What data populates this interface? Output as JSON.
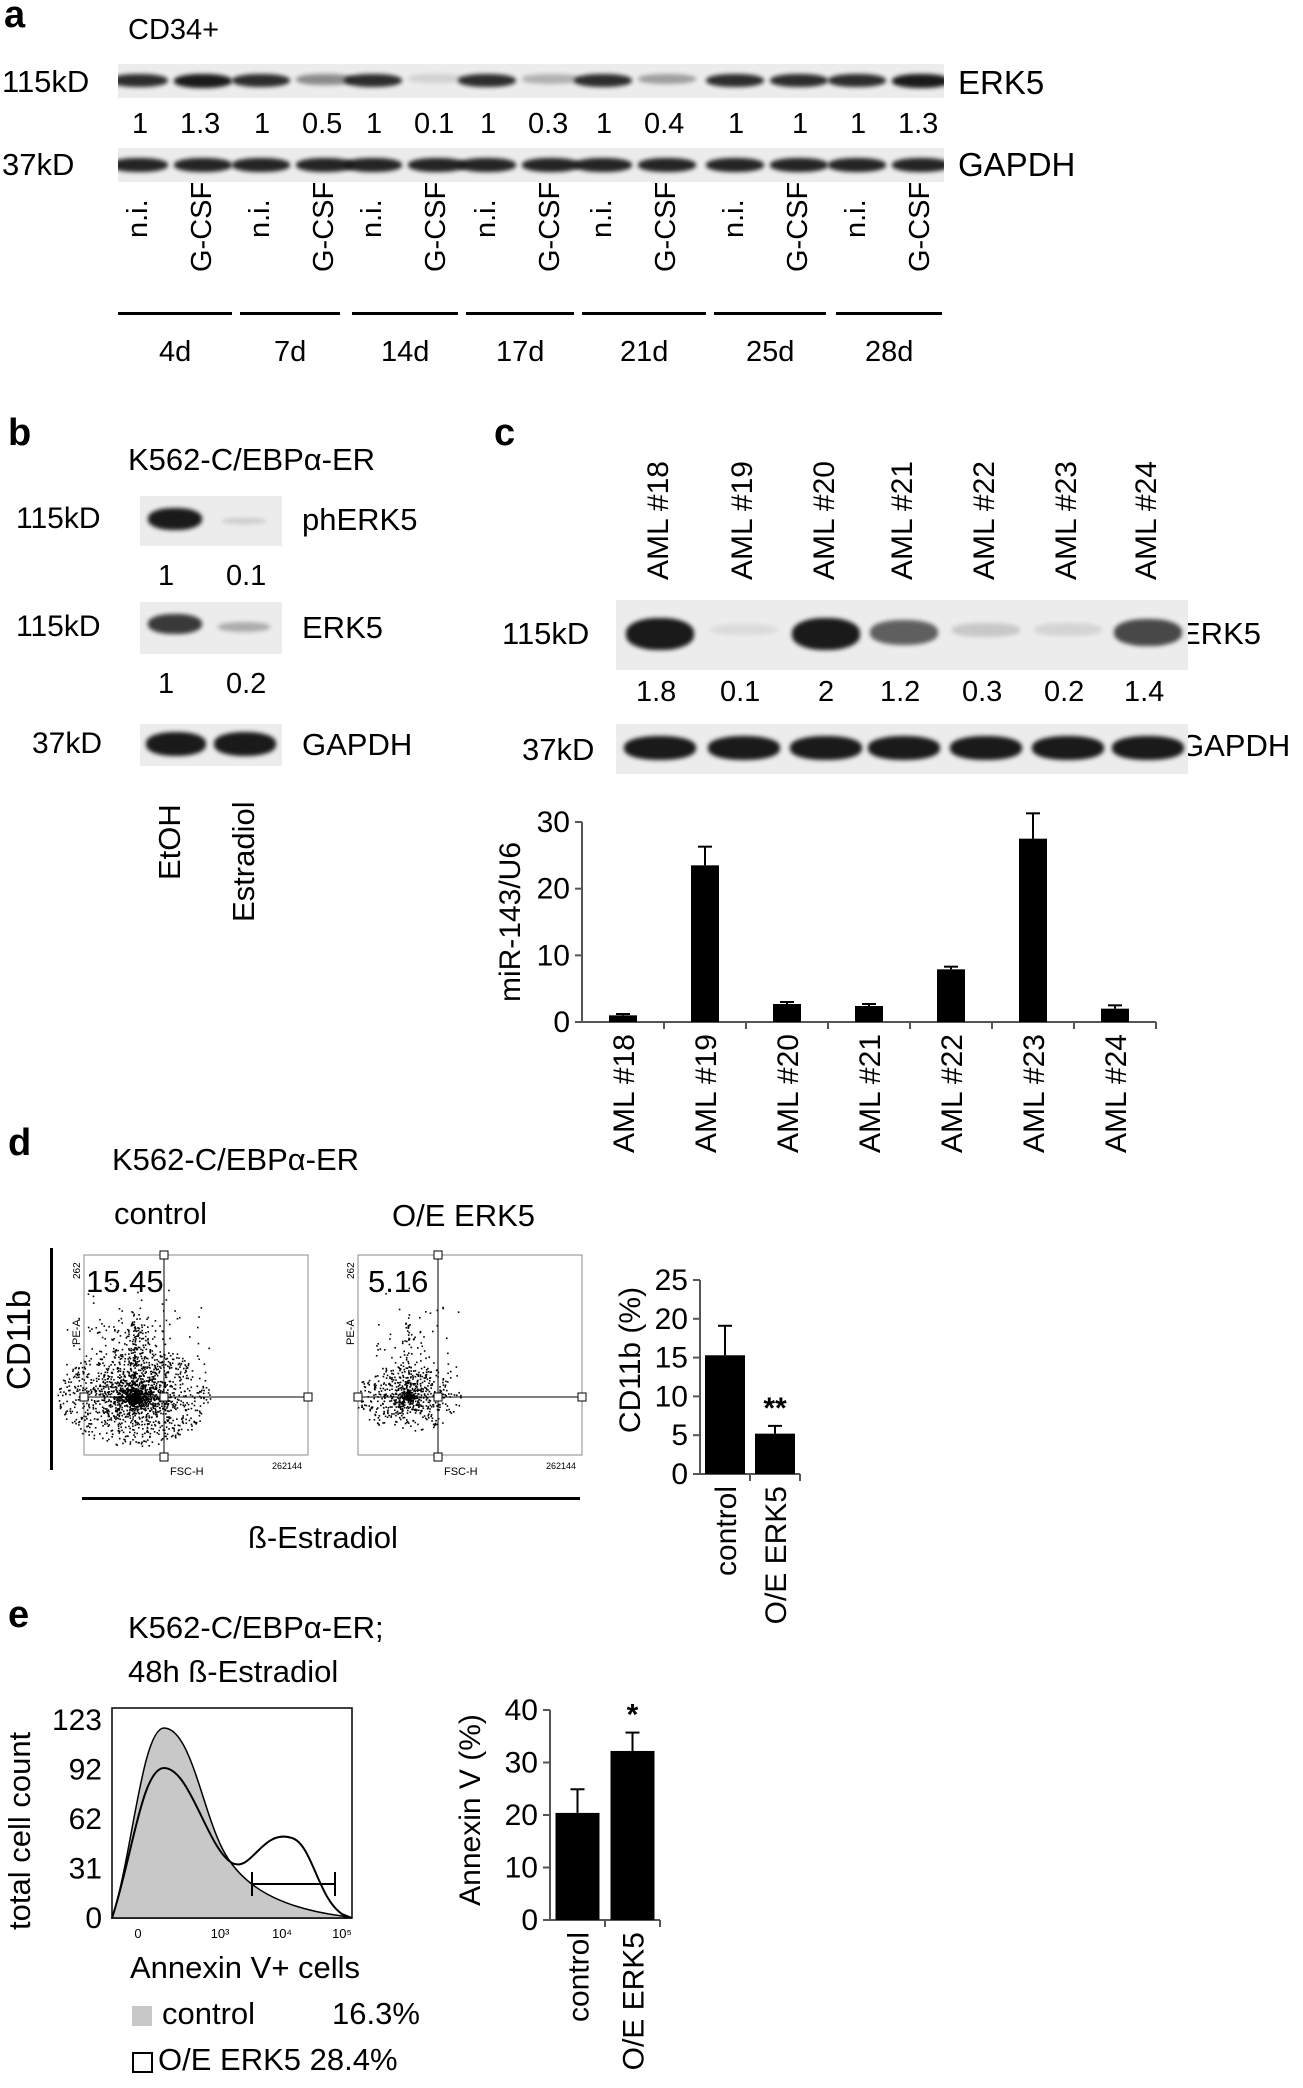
{
  "panels": {
    "a": {
      "letter": "a",
      "cell_type": "CD34+",
      "marker_115": "115kD",
      "marker_37": "37kD",
      "protein_top": "ERK5",
      "protein_bottom": "GAPDH",
      "quant": [
        "1",
        "1.3",
        "1",
        "0.5",
        "1",
        "0.1",
        "1",
        "0.3",
        "1",
        "0.4",
        "1",
        "1",
        "1",
        "1.3"
      ],
      "lanes": [
        "n.i.",
        "G-CSF",
        "n.i.",
        "G-CSF",
        "n.i.",
        "G-CSF",
        "n.i.",
        "G-CSF",
        "n.i.",
        "G-CSF",
        "n.i.",
        "G-CSF",
        "n.i.",
        "G-CSF"
      ],
      "days": [
        "4d",
        "7d",
        "14d",
        "17d",
        "21d",
        "25d",
        "28d"
      ]
    },
    "b": {
      "letter": "b",
      "cell_line": "K562-C/EBPα-ER",
      "marker_1": "115kD",
      "marker_2": "115kD",
      "marker_3": "37kD",
      "protein_1": "phERK5",
      "protein_2": "ERK5",
      "protein_3": "GAPDH",
      "quant_1": [
        "1",
        "0.1"
      ],
      "quant_2": [
        "1",
        "0.2"
      ],
      "lanes": [
        "EtOH",
        "Estradiol"
      ]
    },
    "c": {
      "letter": "c",
      "lanes_top": [
        "AML #18",
        "AML #19",
        "AML #20",
        "AML #21",
        "AML #22",
        "AML #23",
        "AML #24"
      ],
      "marker_115": "115kD",
      "marker_37": "37kD",
      "protein_top": "ERK5",
      "protein_bottom": "GAPDH",
      "quant": [
        "1.8",
        "0.1",
        "2",
        "1.2",
        "0.3",
        "0.2",
        "1.4"
      ]
    },
    "d": {
      "letter": "d",
      "cell_line": "K562-C/EBPα-ER",
      "label_control": "control",
      "label_oe": "O/E ERK5",
      "pct_control": "15.45",
      "pct_oe": "5.16",
      "y_axis": "CD11b",
      "x_axis": "ß-Estradiol",
      "facs_ylabel": "PE-A",
      "facs_xlabel": "FSC-H",
      "facs_max": "262144",
      "facs_ytop": "262"
    },
    "e": {
      "letter": "e",
      "title_1": "K562-C/EBPα-ER;",
      "title_2": "48h ß-Estradiol",
      "y_axis": "total cell count",
      "y_ticks": [
        "123",
        "92",
        "62",
        "31",
        "0"
      ],
      "x_ticks": [
        "0",
        "10³",
        "10⁴",
        "10⁵"
      ],
      "legend_title": "Annexin V+ cells",
      "legend_control": "control",
      "legend_control_pct": "16.3%",
      "legend_oe": "O/E ERK5 28.4%"
    }
  },
  "chart_data": [
    {
      "type": "bar",
      "panel": "c",
      "categories": [
        "AML #18",
        "AML #19",
        "AML #20",
        "AML #21",
        "AML #22",
        "AML #23",
        "AML #24"
      ],
      "values": [
        1.0,
        23.5,
        2.7,
        2.4,
        7.9,
        27.5,
        2.0
      ],
      "errors": [
        0.2,
        2.8,
        0.3,
        0.3,
        0.4,
        3.8,
        0.5
      ],
      "ylabel": "miR-143/U6",
      "yticks": [
        "30",
        "20",
        "10",
        "0"
      ],
      "ylim": [
        0,
        30
      ]
    },
    {
      "type": "bar",
      "panel": "d",
      "categories": [
        "control",
        "O/E ERK5"
      ],
      "values": [
        15.3,
        5.2
      ],
      "errors": [
        3.8,
        1.0
      ],
      "ylabel": "CD11b (%)",
      "yticks": [
        "25",
        "20",
        "15",
        "10",
        "5",
        "0"
      ],
      "ylim": [
        0,
        25
      ],
      "significance": "**"
    },
    {
      "type": "bar",
      "panel": "e",
      "categories": [
        "control",
        "O/E ERK5"
      ],
      "values": [
        20.4,
        32.2
      ],
      "errors": [
        4.5,
        3.5
      ],
      "ylabel": "Annexin V (%)",
      "yticks": [
        "40",
        "30",
        "20",
        "10",
        "0"
      ],
      "ylim": [
        0,
        40
      ],
      "significance": "*"
    }
  ],
  "colors": {
    "fill_control": "#c8c8c8",
    "bar": "#000000"
  }
}
